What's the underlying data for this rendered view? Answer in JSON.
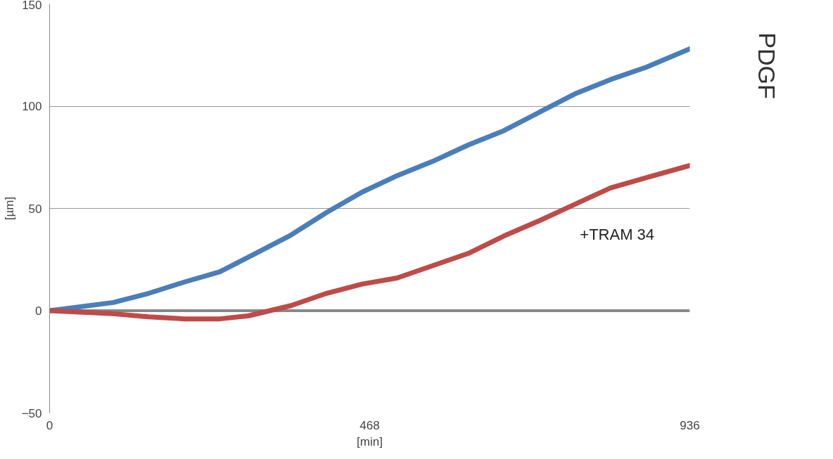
{
  "chart_data": {
    "type": "line",
    "xlabel": "[min]",
    "ylabel": "[µm]",
    "xlim": [
      0,
      936
    ],
    "xticks": [
      0,
      468,
      936
    ],
    "ylim": [
      -50,
      150
    ],
    "yticks": [
      -50,
      0,
      50,
      100,
      150
    ],
    "grid": "y",
    "marker": "none",
    "line_style": "solid",
    "annotations": [
      "PDGF"
    ],
    "series": [
      {
        "color": "#4a7ebb",
        "x": [
          0,
          93,
          145,
          197,
          249,
          301,
          353,
          405,
          457,
          508,
          560,
          612,
          664,
          716,
          768,
          820,
          872,
          936
        ],
        "values": [
          0,
          4,
          8.5,
          14,
          19,
          28,
          37,
          48,
          58,
          66,
          73,
          81,
          88,
          97,
          106,
          113,
          119,
          128
        ]
      },
      {
        "name": "+TRAM 34",
        "color": "#be4b48",
        "x": [
          0,
          93,
          145,
          197,
          249,
          291,
          322,
          353,
          405,
          457,
          508,
          560,
          612,
          664,
          716,
          768,
          820,
          872,
          936
        ],
        "values": [
          0,
          -1.5,
          -3,
          -4,
          -4,
          -2.5,
          0,
          2.5,
          8.5,
          13,
          16,
          22,
          28,
          36.5,
          44,
          52,
          60,
          65,
          71
        ]
      }
    ]
  }
}
